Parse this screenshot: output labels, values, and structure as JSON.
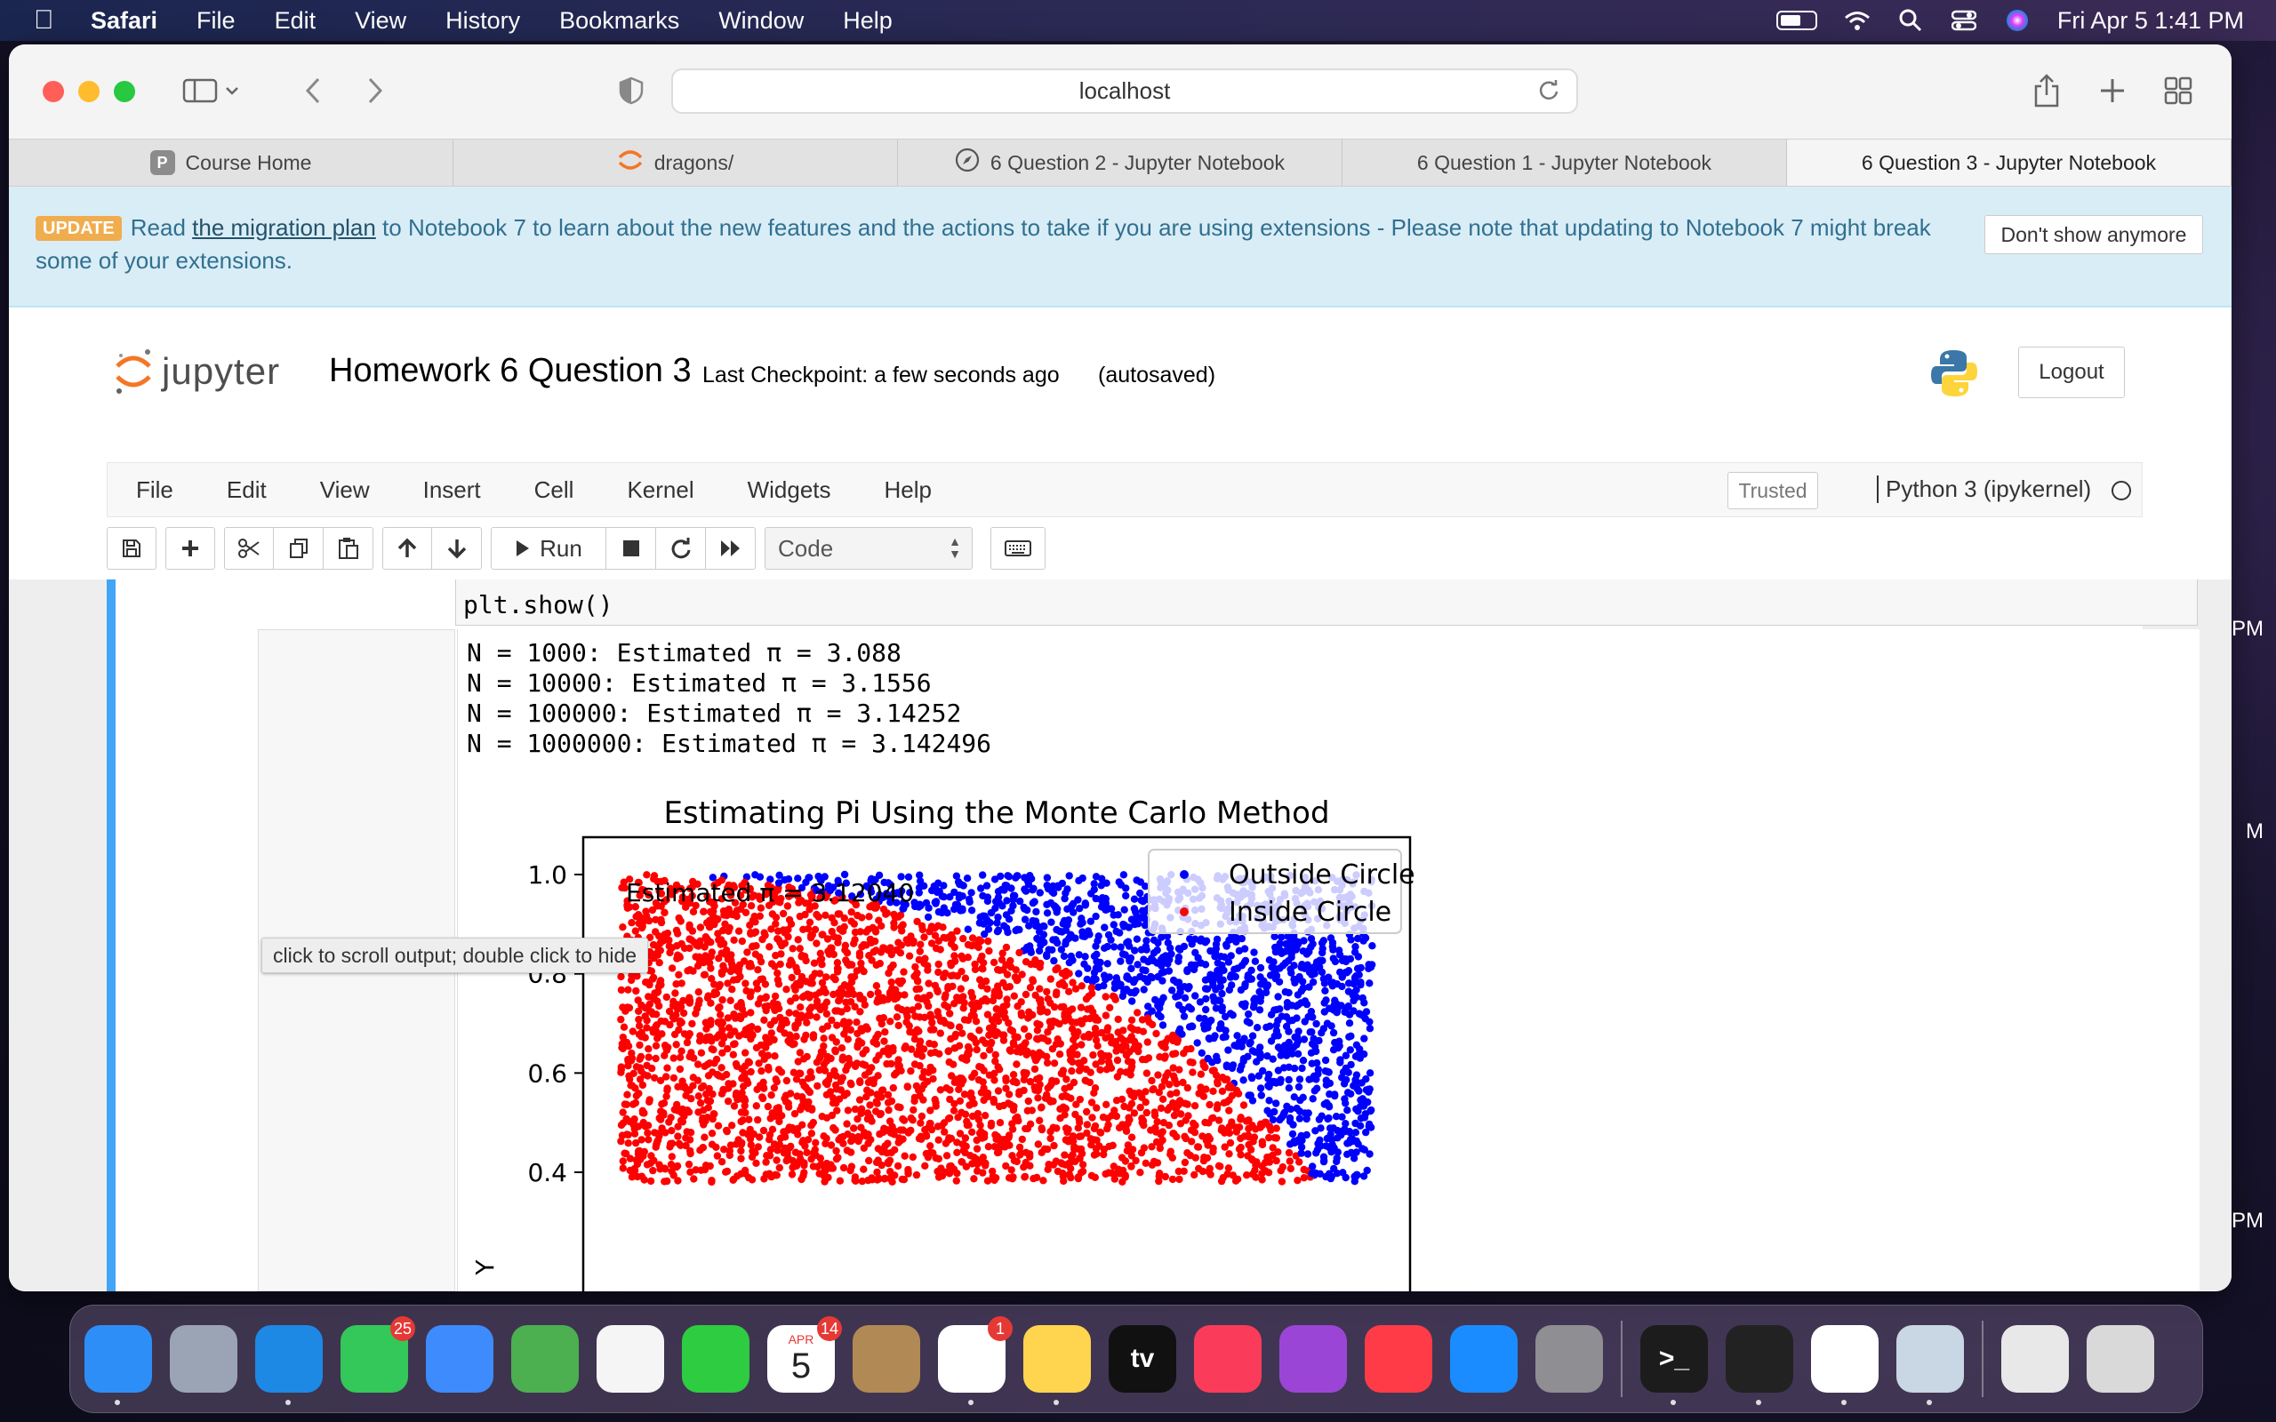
{
  "menubar": {
    "app": "Safari",
    "items": [
      "File",
      "Edit",
      "View",
      "History",
      "Bookmarks",
      "Window",
      "Help"
    ],
    "clock": "Fri Apr 5  1:41 PM"
  },
  "safari": {
    "url": "localhost",
    "tabs": [
      {
        "label": "Course Home",
        "favicon": "P",
        "icon": "course-favicon"
      },
      {
        "label": "dragons/",
        "icon": "jupyter-favicon"
      },
      {
        "label": "6 Question 2 - Jupyter Notebook",
        "icon": "compass-icon"
      },
      {
        "label": "6 Question 1 - Jupyter Notebook",
        "icon": ""
      },
      {
        "label": "6 Question 3 - Jupyter Notebook",
        "icon": ""
      }
    ]
  },
  "banner": {
    "badge": "UPDATE",
    "prefix": "Read ",
    "link": "the migration plan",
    "suffix": " to Notebook 7 to learn about the new features and the actions to take if you are using extensions - Please note that updating to Notebook 7 might break some of your extensions.",
    "dismiss": "Don't show anymore"
  },
  "header": {
    "logo_text": "jupyter",
    "title": "Homework 6 Question 3",
    "checkpoint": "Last Checkpoint: a few seconds ago",
    "autosaved": "(autosaved)",
    "logout": "Logout"
  },
  "nb_menu": {
    "items": [
      "File",
      "Edit",
      "View",
      "Insert",
      "Cell",
      "Kernel",
      "Widgets",
      "Help"
    ],
    "trusted": "Trusted",
    "kernel": "Python 3 (ipykernel)"
  },
  "nb_toolbar": {
    "run": "Run",
    "cell_type": "Code"
  },
  "cell": {
    "code_partial": "plt.show()",
    "stdout": [
      "N = 1000: Estimated π = 3.088",
      "N = 10000: Estimated π = 3.1556",
      "N = 100000: Estimated π = 3.14252",
      "N = 1000000: Estimated π = 3.142496"
    ],
    "tooltip": "click to scroll output; double click to hide"
  },
  "chart_data": {
    "type": "scatter",
    "title": "Estimating Pi Using the Monte Carlo Method",
    "ylabel": "Y",
    "xlabel": "",
    "yticks": [
      1.0,
      0.8,
      0.6,
      0.4
    ],
    "ytick_labels": [
      "1.0",
      "0.8",
      "0.6",
      "0.4"
    ],
    "visible_ylim": [
      0.38,
      1.05
    ],
    "xlim": [
      -0.05,
      1.05
    ],
    "series": [
      {
        "name": "Outside Circle",
        "color": "#0000ff",
        "rule": "x^2 + y^2 > 1"
      },
      {
        "name": "Inside Circle",
        "color": "#ff0000",
        "rule": "x^2 + y^2 <= 1"
      }
    ],
    "annotation": "Estimated π = 3.12040",
    "legend_position": "upper right"
  },
  "dock": {
    "apps": [
      {
        "name": "Finder",
        "icon": "finder-icon",
        "color": "#2e8ef7"
      },
      {
        "name": "Launchpad",
        "icon": "launchpad-icon",
        "color": "#9aa4b5"
      },
      {
        "name": "Safari",
        "icon": "safari-icon",
        "color": "#1e88e5"
      },
      {
        "name": "Messages",
        "icon": "messages-icon",
        "color": "#34c759",
        "badge": "25"
      },
      {
        "name": "Mail",
        "icon": "mail-icon",
        "color": "#3d8bfd"
      },
      {
        "name": "Maps",
        "icon": "maps-icon",
        "color": "#4caf50"
      },
      {
        "name": "Photos",
        "icon": "photos-icon",
        "color": "#f5f5f5"
      },
      {
        "name": "FaceTime",
        "icon": "facetime-icon",
        "color": "#2ecc40"
      },
      {
        "name": "Calendar",
        "icon": "calendar-icon",
        "color": "#ffffff",
        "text": "5",
        "month": "APR",
        "badge": "14"
      },
      {
        "name": "Contacts",
        "icon": "contacts-icon",
        "color": "#b08954"
      },
      {
        "name": "Reminders",
        "icon": "reminders-icon",
        "color": "#ffffff",
        "badge": "1"
      },
      {
        "name": "Notes",
        "icon": "notes-icon",
        "color": "#ffd54f"
      },
      {
        "name": "TV",
        "icon": "tv-icon",
        "color": "#111111",
        "text": "tv"
      },
      {
        "name": "Music",
        "icon": "music-icon",
        "color": "#fa3c5a"
      },
      {
        "name": "Podcasts",
        "icon": "podcasts-icon",
        "color": "#9b45d6"
      },
      {
        "name": "News",
        "icon": "news-icon",
        "color": "#ff3b47"
      },
      {
        "name": "App Store",
        "icon": "appstore-icon",
        "color": "#1a8cff"
      },
      {
        "name": "System Settings",
        "icon": "settings-icon",
        "color": "#8e8e93"
      }
    ],
    "apps2": [
      {
        "name": "Terminal",
        "icon": "terminal-icon",
        "color": "#1c1c1c",
        "text": ">_"
      },
      {
        "name": "Activity Monitor",
        "icon": "activity-monitor-icon",
        "color": "#222"
      },
      {
        "name": "VS Code",
        "icon": "vscode-icon",
        "color": "#ffffff"
      },
      {
        "name": "Preview",
        "icon": "preview-icon",
        "color": "#c9d6e4"
      }
    ],
    "apps3": [
      {
        "name": "Documents",
        "icon": "documents-folder-icon",
        "color": "#e8e8e8"
      },
      {
        "name": "Trash",
        "icon": "trash-icon",
        "color": "#d9d9d9"
      }
    ]
  },
  "desktop_side_labels": [
    "PM",
    "M",
    "PM"
  ]
}
